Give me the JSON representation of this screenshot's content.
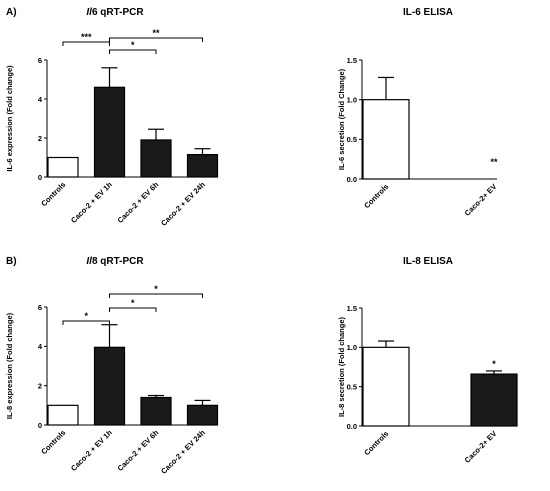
{
  "panel_labels": [
    "A)",
    "B)"
  ],
  "chart_data": [
    {
      "id": "il6-qpcr",
      "type": "bar",
      "title": "Il6 qRT-PCR",
      "title_italic": "Il",
      "title_rest": "6 qRT-PCR",
      "ylabel": "IL-6 expression (Fold change)",
      "ylim": [
        0,
        6
      ],
      "yticks": [
        "0",
        "2",
        "4",
        "6"
      ],
      "categories": [
        "Controls",
        "Caco-2 + EV 1h",
        "Caco-2 + EV 6h",
        "Caco-2 + EV 24h"
      ],
      "values": [
        1.0,
        4.6,
        1.9,
        1.15
      ],
      "errors": [
        0,
        1.0,
        0.55,
        0.3
      ],
      "fills": [
        "#ffffff",
        "#1a1a1a",
        "#1a1a1a",
        "#1a1a1a"
      ],
      "brackets": [
        {
          "from": 0,
          "to": 1,
          "label": "***"
        },
        {
          "from": 1,
          "to": 2,
          "label": "*"
        },
        {
          "from": 1,
          "to": 3,
          "label": "**"
        }
      ],
      "bar_labels": []
    },
    {
      "id": "il6-elisa",
      "type": "bar",
      "title": "IL-6 ELISA",
      "ylabel": "IL-6 secretion (Fold Change)",
      "ylim": [
        0,
        1.5
      ],
      "yticks": [
        "0.0",
        "0.5",
        "1.0",
        "1.5"
      ],
      "categories": [
        "Controls",
        "Caco-2+ EV"
      ],
      "values": [
        1.0,
        0
      ],
      "errors": [
        0.28,
        0
      ],
      "fills": [
        "#ffffff",
        "#1a1a1a"
      ],
      "brackets": [],
      "bar_labels": [
        {
          "index": 1,
          "label": "**"
        }
      ]
    },
    {
      "id": "il8-qpcr",
      "type": "bar",
      "title": "Il8 qRT-PCR",
      "title_italic": "Il",
      "title_rest": "8 qRT-PCR",
      "ylabel": "IL-8 expression (Fold change)",
      "ylim": [
        0,
        6
      ],
      "yticks": [
        "0",
        "2",
        "4",
        "6"
      ],
      "categories": [
        "Controls",
        "Caco-2 + EV 1h",
        "Caco-2 + EV 6h",
        "Caco-2 + EV 24h"
      ],
      "values": [
        1.0,
        3.95,
        1.4,
        1.0
      ],
      "errors": [
        0,
        1.15,
        0.1,
        0.25
      ],
      "fills": [
        "#ffffff",
        "#1a1a1a",
        "#1a1a1a",
        "#1a1a1a"
      ],
      "brackets": [
        {
          "from": 0,
          "to": 1,
          "label": "*"
        },
        {
          "from": 1,
          "to": 2,
          "label": "*"
        },
        {
          "from": 1,
          "to": 3,
          "label": "*"
        }
      ],
      "bar_labels": []
    },
    {
      "id": "il8-elisa",
      "type": "bar",
      "title": "IL-8 ELISA",
      "ylabel": "IL-8 secretion (Fold change)",
      "ylim": [
        0,
        1.5
      ],
      "yticks": [
        "0.0",
        "0.5",
        "1.0",
        "1.5"
      ],
      "categories": [
        "Controls",
        "Caco-2+ EV"
      ],
      "values": [
        1.0,
        0.66
      ],
      "errors": [
        0.08,
        0.04
      ],
      "fills": [
        "#ffffff",
        "#1a1a1a"
      ],
      "brackets": [],
      "bar_labels": [
        {
          "index": 1,
          "label": "*"
        }
      ]
    }
  ]
}
